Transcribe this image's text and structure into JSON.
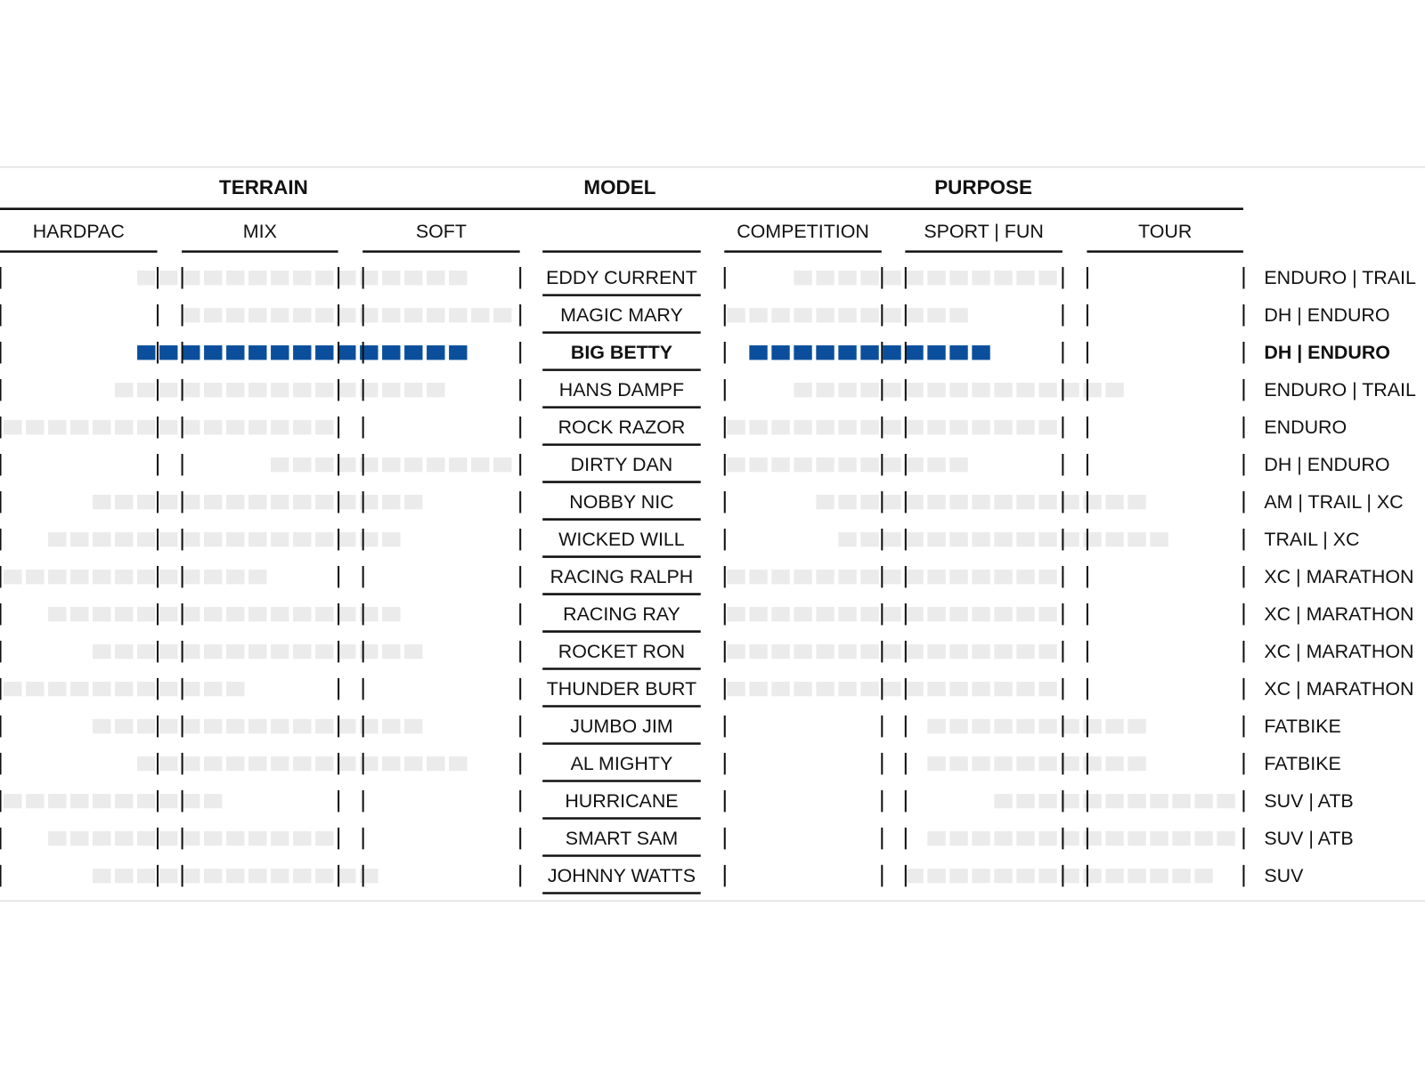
{
  "header": {
    "groups": [
      "TERRAIN",
      "MODEL",
      "PURPOSE"
    ],
    "terrain_columns": [
      "HARDPAC",
      "MIX",
      "SOFT"
    ],
    "purpose_columns": [
      "COMPETITION",
      "SPORT | FUN",
      "TOUR"
    ]
  },
  "rows": [
    {
      "model": "EDDY CURRENT",
      "use": "ENDURO | TRAIL",
      "terrain": [
        6,
        20
      ],
      "purpose": [
        3,
        14
      ],
      "color": "#ebebeb",
      "bold": false
    },
    {
      "model": "MAGIC MARY",
      "use": "DH | ENDURO",
      "terrain": [
        8,
        22
      ],
      "purpose": [
        0,
        10
      ],
      "color": "#ebebeb",
      "bold": false
    },
    {
      "model": "BIG BETTY",
      "use": "DH | ENDURO",
      "terrain": [
        6,
        20
      ],
      "purpose": [
        1,
        11
      ],
      "color": "#0b4f9c",
      "bold": true
    },
    {
      "model": "HANS DAMPF",
      "use": "ENDURO | TRAIL",
      "terrain": [
        5,
        19
      ],
      "purpose": [
        3,
        17
      ],
      "color": "#ebebeb",
      "bold": false
    },
    {
      "model": "ROCK RAZOR",
      "use": "ENDURO",
      "terrain": [
        0,
        14
      ],
      "purpose": [
        0,
        14
      ],
      "color": "#ebebeb",
      "bold": false
    },
    {
      "model": "DIRTY DAN",
      "use": "DH | ENDURO",
      "terrain": [
        12,
        22
      ],
      "purpose": [
        0,
        10
      ],
      "color": "#ebebeb",
      "bold": false
    },
    {
      "model": "NOBBY NIC",
      "use": "AM | TRAIL | XC",
      "terrain": [
        4,
        18
      ],
      "purpose": [
        4,
        18
      ],
      "color": "#ebebeb",
      "bold": false
    },
    {
      "model": "WICKED WILL",
      "use": "TRAIL | XC",
      "terrain": [
        2,
        17
      ],
      "purpose": [
        5,
        19
      ],
      "color": "#ebebeb",
      "bold": false
    },
    {
      "model": "RACING RALPH",
      "use": "XC | MARATHON",
      "terrain": [
        0,
        11
      ],
      "purpose": [
        0,
        14
      ],
      "color": "#ebebeb",
      "bold": false
    },
    {
      "model": "RACING RAY",
      "use": "XC | MARATHON",
      "terrain": [
        2,
        17
      ],
      "purpose": [
        0,
        14
      ],
      "color": "#ebebeb",
      "bold": false
    },
    {
      "model": "ROCKET RON",
      "use": "XC | MARATHON",
      "terrain": [
        4,
        18
      ],
      "purpose": [
        0,
        14
      ],
      "color": "#ebebeb",
      "bold": false
    },
    {
      "model": "THUNDER BURT",
      "use": "XC | MARATHON",
      "terrain": [
        0,
        10
      ],
      "purpose": [
        0,
        14
      ],
      "color": "#ebebeb",
      "bold": false
    },
    {
      "model": "JUMBO JIM",
      "use": "FATBIKE",
      "terrain": [
        4,
        18
      ],
      "purpose": [
        9,
        18
      ],
      "color": "#ebebeb",
      "bold": false
    },
    {
      "model": "AL MIGHTY",
      "use": "FATBIKE",
      "terrain": [
        6,
        20
      ],
      "purpose": [
        9,
        18
      ],
      "color": "#ebebeb",
      "bold": false
    },
    {
      "model": "HURRICANE",
      "use": "SUV | ATB",
      "terrain": [
        0,
        9
      ],
      "purpose": [
        12,
        22
      ],
      "color": "#ebebeb",
      "bold": false
    },
    {
      "model": "SMART SAM",
      "use": "SUV | ATB",
      "terrain": [
        2,
        14
      ],
      "purpose": [
        9,
        22
      ],
      "color": "#ebebeb",
      "bold": false
    },
    {
      "model": "JOHNNY WATTS",
      "use": "SUV",
      "terrain": [
        4,
        16
      ],
      "purpose": [
        8,
        21
      ],
      "color": "#ebebeb",
      "bold": false
    }
  ]
}
